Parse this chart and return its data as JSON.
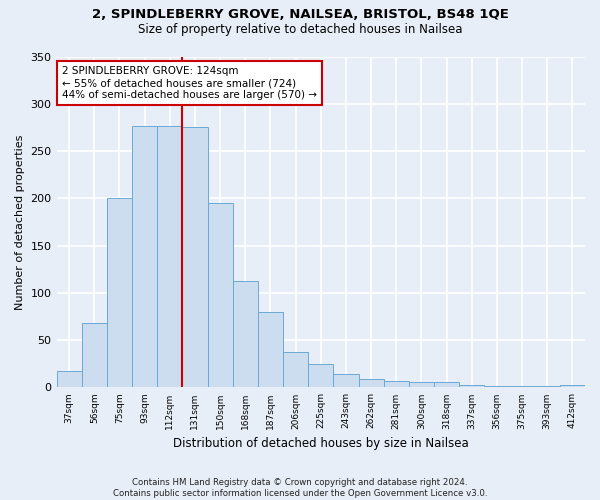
{
  "title1": "2, SPINDLEBERRY GROVE, NAILSEA, BRISTOL, BS48 1QE",
  "title2": "Size of property relative to detached houses in Nailsea",
  "xlabel": "Distribution of detached houses by size in Nailsea",
  "ylabel": "Number of detached properties",
  "categories": [
    "37sqm",
    "56sqm",
    "75sqm",
    "93sqm",
    "112sqm",
    "131sqm",
    "150sqm",
    "168sqm",
    "187sqm",
    "206sqm",
    "225sqm",
    "243sqm",
    "262sqm",
    "281sqm",
    "300sqm",
    "318sqm",
    "337sqm",
    "356sqm",
    "375sqm",
    "393sqm",
    "412sqm"
  ],
  "values": [
    17,
    68,
    200,
    277,
    277,
    275,
    195,
    113,
    80,
    38,
    25,
    14,
    9,
    7,
    6,
    6,
    3,
    2,
    1,
    1,
    3
  ],
  "bar_color": "#ccddf0",
  "bar_edge_color": "#6aaad4",
  "vline_x": 4.5,
  "vline_color": "#cc0000",
  "annotation_text": "2 SPINDLEBERRY GROVE: 124sqm\n← 55% of detached houses are smaller (724)\n44% of semi-detached houses are larger (570) →",
  "annotation_box_color": "#ffffff",
  "annotation_box_edge": "#cc0000",
  "footnote": "Contains HM Land Registry data © Crown copyright and database right 2024.\nContains public sector information licensed under the Open Government Licence v3.0.",
  "ylim": [
    0,
    350
  ],
  "figure_bg": "#e8eef8",
  "axes_bg": "#e8eef8",
  "grid_color": "#ffffff"
}
